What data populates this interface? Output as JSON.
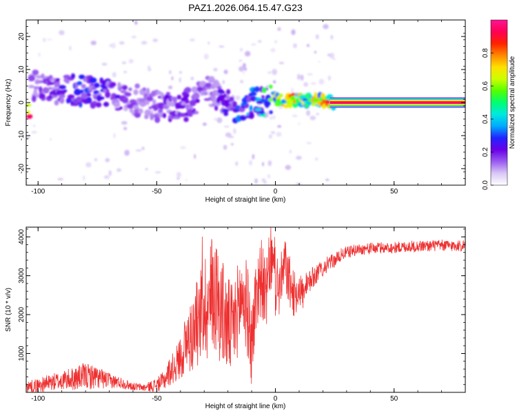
{
  "title": "PAZ1.2026.064.15.47.G23",
  "chart_data": [
    {
      "type": "heatmap",
      "panel": "top",
      "xlabel": "Height of straight line (km)",
      "ylabel": "Frequency (Hz)",
      "xlim": [
        -105,
        80
      ],
      "ylim": [
        -25,
        25
      ],
      "xticks": [
        -100,
        -50,
        0,
        50
      ],
      "yticks": [
        -20,
        -10,
        0,
        10,
        20
      ],
      "colorbar": {
        "label": "Normalized spectral amplitude",
        "range": [
          0,
          1
        ],
        "ticks": [
          0.0,
          0.2,
          0.4,
          0.6,
          0.8
        ],
        "tick_labels": [
          "0.0",
          "0.2",
          "0.4",
          "0.6",
          "0.8"
        ],
        "colors": [
          "#ffffff",
          "#d9c8f5",
          "#9a5cf0",
          "#6a00e8",
          "#2222ff",
          "#00aaff",
          "#00e8e0",
          "#00ff70",
          "#55ff00",
          "#ccff00",
          "#ffe000",
          "#ff8800",
          "#ff2200",
          "#ff0055",
          "#ff1493"
        ]
      },
      "ridge": {
        "description": "frequency ridge of normalized spectral amplitude",
        "points": [
          [
            -103,
            5,
            0.15
          ],
          [
            -95,
            4.5,
            0.2
          ],
          [
            -88,
            4,
            0.25
          ],
          [
            -80,
            3.5,
            0.3
          ],
          [
            -72,
            3,
            0.25
          ],
          [
            -65,
            2,
            0.2
          ],
          [
            -58,
            0.5,
            0.15
          ],
          [
            -52,
            -1,
            0.15
          ],
          [
            -46,
            -0.5,
            0.2
          ],
          [
            -40,
            -1.5,
            0.2
          ],
          [
            -34,
            0.5,
            0.2
          ],
          [
            -28,
            3.5,
            0.15
          ],
          [
            -24,
            1.5,
            0.2
          ],
          [
            -20,
            -1,
            0.25
          ],
          [
            -16,
            -1.5,
            0.3
          ],
          [
            -12,
            -0.5,
            0.35
          ],
          [
            -8,
            0,
            0.4
          ],
          [
            -4,
            0.5,
            0.5
          ],
          [
            0,
            1,
            0.65
          ],
          [
            4,
            0.5,
            0.8
          ],
          [
            8,
            1,
            0.8
          ],
          [
            12,
            0.5,
            0.75
          ],
          [
            16,
            0.5,
            0.7
          ],
          [
            20,
            0.5,
            0.75
          ],
          [
            25,
            0,
            0.95
          ],
          [
            80,
            0,
            0.95
          ]
        ]
      }
    },
    {
      "type": "line",
      "panel": "bottom",
      "xlabel": "Height of straight line (km)",
      "ylabel": "SNR (10 * v/v)",
      "xlim": [
        -105,
        80
      ],
      "ylim": [
        0,
        4250
      ],
      "xticks": [
        -100,
        -50,
        0,
        50
      ],
      "yticks": [
        1000,
        2000,
        3000,
        4000
      ],
      "series": [
        {
          "name": "SNR",
          "color": "#ee3030",
          "x": [
            -105,
            -100,
            -95,
            -90,
            -85,
            -80,
            -75,
            -70,
            -65,
            -60,
            -55,
            -50,
            -47,
            -45,
            -42,
            -40,
            -38,
            -35,
            -32,
            -30,
            -28,
            -26,
            -25,
            -22,
            -20,
            -18,
            -16,
            -14,
            -12,
            -10,
            -8,
            -6,
            -4,
            -2,
            0,
            2,
            4,
            6,
            8,
            10,
            12,
            15,
            18,
            20,
            22,
            25,
            28,
            30,
            35,
            40,
            45,
            50,
            55,
            60,
            65,
            70,
            75,
            80
          ],
          "y": [
            150,
            180,
            250,
            300,
            350,
            420,
            380,
            300,
            250,
            150,
            120,
            200,
            300,
            500,
            700,
            900,
            1200,
            1500,
            1900,
            2300,
            2200,
            2700,
            2500,
            2000,
            1700,
            1600,
            2100,
            2500,
            2200,
            1200,
            2600,
            3000,
            2400,
            3500,
            2800,
            2700,
            3300,
            2800,
            2500,
            2700,
            2500,
            2900,
            3100,
            3200,
            3300,
            3400,
            3550,
            3600,
            3680,
            3700,
            3720,
            3720,
            3750,
            3760,
            3770,
            3780,
            3770,
            3780
          ],
          "noise_amplitude": [
            150,
            180,
            220,
            250,
            300,
            350,
            300,
            200,
            150,
            100,
            100,
            180,
            250,
            350,
            450,
            600,
            800,
            1000,
            1200,
            1400,
            1500,
            1600,
            1500,
            1400,
            1300,
            1200,
            1200,
            1300,
            1200,
            1100,
            1100,
            1000,
            900,
            900,
            900,
            800,
            700,
            700,
            600,
            500,
            400,
            300,
            250,
            220,
            200,
            180,
            170,
            160,
            150,
            150,
            150,
            150,
            150,
            150,
            150,
            150,
            150,
            150
          ]
        }
      ]
    }
  ]
}
